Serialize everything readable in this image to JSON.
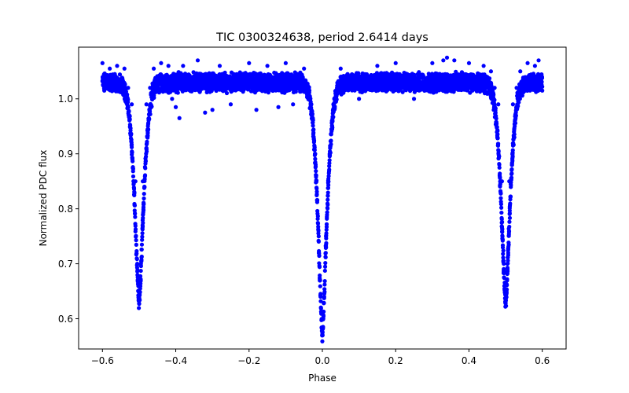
{
  "chart_data": {
    "type": "scatter",
    "title": "TIC 0300324638, period 2.6414 days",
    "xlabel": "Phase",
    "ylabel": "Normalized PDC flux",
    "xlim": [
      -0.665,
      0.665
    ],
    "ylim": [
      0.545,
      1.094
    ],
    "x_ticks": [
      -0.6,
      -0.4,
      -0.2,
      0.0,
      0.2,
      0.4,
      0.6
    ],
    "x_tick_labels": [
      "−0.6",
      "−0.4",
      "−0.2",
      "0.0",
      "0.2",
      "0.4",
      "0.6"
    ],
    "y_ticks": [
      0.6,
      0.7,
      0.8,
      0.9,
      1.0
    ],
    "y_tick_labels": [
      "0.6",
      "0.7",
      "0.8",
      "0.9",
      "1.0"
    ],
    "grid": false,
    "legend": "none",
    "marker_color": "#0000ff",
    "series": [
      {
        "phase_range": [
          -0.6,
          0.6
        ],
        "baseline_flux": 1.03,
        "eclipses": [
          {
            "phase": -0.5,
            "min_flux": 0.628
          },
          {
            "phase": 0.0,
            "min_flux": 0.572
          },
          {
            "phase": 0.5,
            "min_flux": 0.628
          }
        ],
        "points": [
          {
            "x": -0.6,
            "y": 1.065
          },
          {
            "x": -0.595,
            "y": 1.015
          },
          {
            "x": -0.58,
            "y": 1.055
          },
          {
            "x": -0.56,
            "y": 1.06
          },
          {
            "x": -0.54,
            "y": 1.055
          },
          {
            "x": -0.53,
            "y": 1.02
          },
          {
            "x": -0.52,
            "y": 0.99
          },
          {
            "x": -0.51,
            "y": 0.85
          },
          {
            "x": -0.505,
            "y": 0.7
          },
          {
            "x": -0.5,
            "y": 0.628
          },
          {
            "x": -0.495,
            "y": 0.7
          },
          {
            "x": -0.49,
            "y": 0.85
          },
          {
            "x": -0.48,
            "y": 0.99
          },
          {
            "x": -0.47,
            "y": 1.02
          },
          {
            "x": -0.46,
            "y": 1.055
          },
          {
            "x": -0.44,
            "y": 1.065
          },
          {
            "x": -0.42,
            "y": 1.06
          },
          {
            "x": -0.41,
            "y": 1.0
          },
          {
            "x": -0.4,
            "y": 0.985
          },
          {
            "x": -0.39,
            "y": 0.965
          },
          {
            "x": -0.38,
            "y": 1.06
          },
          {
            "x": -0.34,
            "y": 1.07
          },
          {
            "x": -0.32,
            "y": 0.975
          },
          {
            "x": -0.3,
            "y": 0.98
          },
          {
            "x": -0.28,
            "y": 1.06
          },
          {
            "x": -0.25,
            "y": 0.99
          },
          {
            "x": -0.2,
            "y": 1.065
          },
          {
            "x": -0.18,
            "y": 0.98
          },
          {
            "x": -0.15,
            "y": 1.06
          },
          {
            "x": -0.12,
            "y": 0.985
          },
          {
            "x": -0.1,
            "y": 1.065
          },
          {
            "x": -0.08,
            "y": 0.99
          },
          {
            "x": -0.05,
            "y": 1.055
          },
          {
            "x": -0.04,
            "y": 1.02
          },
          {
            "x": -0.03,
            "y": 0.99
          },
          {
            "x": -0.02,
            "y": 0.9
          },
          {
            "x": -0.01,
            "y": 0.75
          },
          {
            "x": -0.005,
            "y": 0.64
          },
          {
            "x": 0.0,
            "y": 0.572
          },
          {
            "x": 0.005,
            "y": 0.64
          },
          {
            "x": 0.01,
            "y": 0.75
          },
          {
            "x": 0.02,
            "y": 0.9
          },
          {
            "x": 0.03,
            "y": 0.99
          },
          {
            "x": 0.04,
            "y": 1.02
          },
          {
            "x": 0.05,
            "y": 1.055
          },
          {
            "x": 0.1,
            "y": 1.0
          },
          {
            "x": 0.15,
            "y": 1.06
          },
          {
            "x": 0.2,
            "y": 1.065
          },
          {
            "x": 0.25,
            "y": 1.0
          },
          {
            "x": 0.3,
            "y": 1.065
          },
          {
            "x": 0.33,
            "y": 1.07
          },
          {
            "x": 0.34,
            "y": 1.075
          },
          {
            "x": 0.36,
            "y": 1.07
          },
          {
            "x": 0.4,
            "y": 1.065
          },
          {
            "x": 0.44,
            "y": 1.06
          },
          {
            "x": 0.46,
            "y": 1.05
          },
          {
            "x": 0.47,
            "y": 1.02
          },
          {
            "x": 0.48,
            "y": 0.99
          },
          {
            "x": 0.49,
            "y": 0.85
          },
          {
            "x": 0.495,
            "y": 0.7
          },
          {
            "x": 0.5,
            "y": 0.628
          },
          {
            "x": 0.505,
            "y": 0.7
          },
          {
            "x": 0.51,
            "y": 0.85
          },
          {
            "x": 0.52,
            "y": 0.99
          },
          {
            "x": 0.53,
            "y": 1.02
          },
          {
            "x": 0.54,
            "y": 1.05
          },
          {
            "x": 0.56,
            "y": 1.065
          },
          {
            "x": 0.58,
            "y": 1.06
          },
          {
            "x": 0.59,
            "y": 1.07
          },
          {
            "x": 0.6,
            "y": 1.015
          }
        ]
      }
    ]
  }
}
